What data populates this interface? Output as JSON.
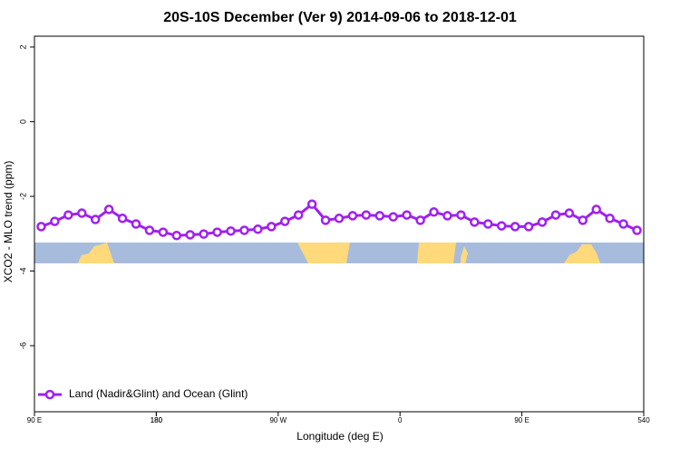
{
  "chart_data": {
    "type": "line",
    "title": "20S-10S December (Ver 9)   2014-09-06 to 2018-12-01",
    "x_label": "Longitude (deg E)",
    "y_label": "XCO2 - MLO trend (ppm)",
    "x": [
      95,
      105,
      115,
      125,
      135,
      145,
      155,
      165,
      175,
      185,
      195,
      205,
      215,
      225,
      235,
      245,
      255,
      265,
      275,
      285,
      295,
      305,
      315,
      325,
      335,
      345,
      355,
      365,
      375,
      385,
      395,
      405,
      415,
      425,
      435,
      445,
      455,
      465,
      475,
      485,
      495,
      505,
      515,
      525,
      535
    ],
    "series": [
      {
        "name": "Land (Nadir&Glint) and Ocean (Glint)",
        "color": "#a020f0",
        "values": [
          -2.81,
          -2.67,
          -2.5,
          -2.45,
          -2.62,
          -2.35,
          -2.59,
          -2.74,
          -2.91,
          -2.96,
          -3.05,
          -3.03,
          -3.01,
          -2.96,
          -2.93,
          -2.91,
          -2.88,
          -2.81,
          -2.67,
          -2.5,
          -2.21,
          -2.64,
          -2.59,
          -2.52,
          -2.5,
          -2.52,
          -2.55,
          -2.5,
          -2.64,
          -2.42,
          -2.52,
          -2.5,
          -2.69,
          -2.74,
          -2.79,
          -2.81,
          -2.81,
          -2.69,
          -2.5,
          -2.45,
          -2.64,
          -2.35,
          -2.59,
          -2.74,
          -2.91
        ]
      }
    ],
    "xlim": [
      90,
      540
    ],
    "xticks": [
      {
        "value": 90,
        "label": "90 E"
      },
      180,
      {
        "value": 270,
        "label": "90 W"
      },
      {
        "value": 360,
        "label": "0"
      },
      {
        "value": 450,
        "label": "90 E"
      },
      180,
      540
    ],
    "ylim": [
      -7.77,
      2.29
    ],
    "yticks": [
      2,
      0,
      -2,
      -4,
      -6
    ],
    "legend": "bottom-left"
  }
}
